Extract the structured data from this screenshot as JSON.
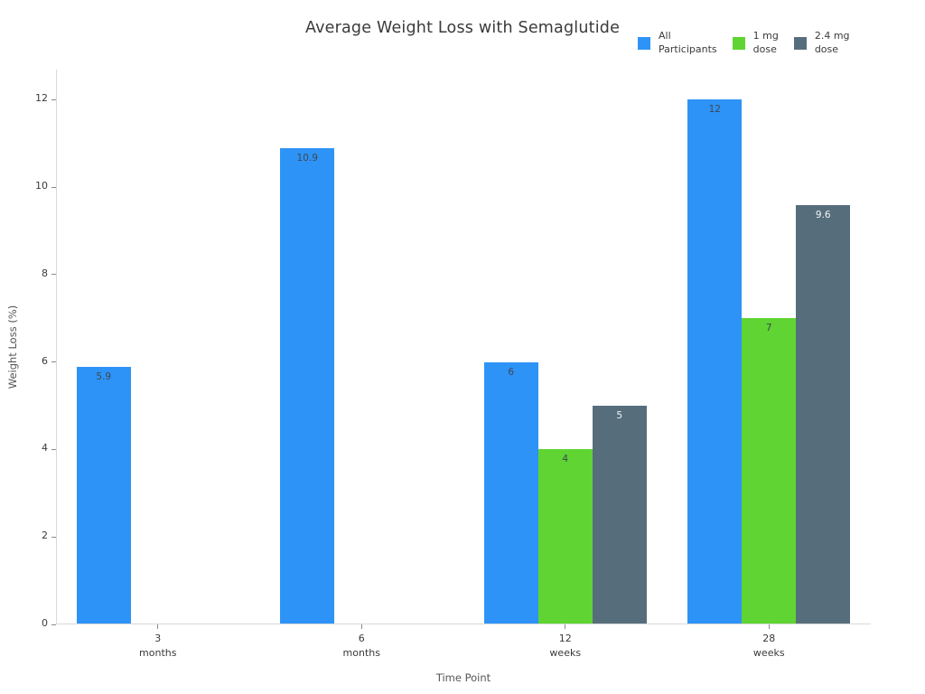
{
  "chart_data": {
    "type": "bar",
    "title": "Average Weight Loss with Semaglutide",
    "xlabel": "Time Point",
    "ylabel": "Weight Loss (%)",
    "categories": [
      "3\nmonths",
      "6\nmonths",
      "12\nweeks",
      "28\nweeks"
    ],
    "series": [
      {
        "name": "All Participants",
        "legend_lines": "All\nParticipants",
        "color": "#2e93f6",
        "label_color": "#3d4852",
        "values": [
          5.9,
          10.9,
          6,
          12
        ],
        "labels": [
          "5.9",
          "10.9",
          "6",
          "12"
        ]
      },
      {
        "name": "1 mg dose",
        "legend_lines": "1 mg\ndose",
        "color": "#5fd432",
        "label_color": "#3d4852",
        "values": [
          null,
          null,
          4,
          7
        ],
        "labels": [
          null,
          null,
          "4",
          "7"
        ]
      },
      {
        "name": "2.4 mg dose",
        "legend_lines": "2.4 mg\ndose",
        "color": "#566e7c",
        "label_color": "#f2f5f5",
        "values": [
          null,
          null,
          5,
          9.6
        ],
        "labels": [
          null,
          null,
          "5",
          "9.6"
        ]
      }
    ],
    "yticks": [
      0,
      2,
      4,
      6,
      8,
      10,
      12
    ],
    "ylim": [
      0,
      12.69
    ],
    "grid": false,
    "legend_position": "top-right",
    "colors": {
      "background": "#ffffff",
      "axis_line": "#d9d9d9",
      "tick_mark": "#8a8a8a",
      "tick_label": "#3a3a3a",
      "axis_title": "#555555",
      "title": "#3a3a3a"
    }
  }
}
